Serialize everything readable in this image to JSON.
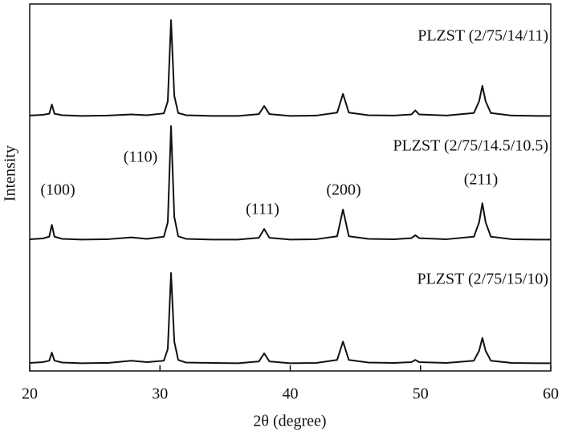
{
  "chart_data": {
    "type": "line",
    "x_label": "2θ (degree)",
    "y_label": "Intensity",
    "x": [
      20,
      21,
      21.5,
      21.7,
      21.9,
      22.5,
      24,
      26,
      27.8,
      29,
      30.3,
      30.6,
      30.85,
      31.1,
      31.4,
      32,
      34,
      36,
      37.6,
      38.0,
      38.4,
      40,
      42,
      43.6,
      44.05,
      44.5,
      46,
      48,
      49.3,
      49.6,
      49.9,
      52,
      54.1,
      54.5,
      54.75,
      55.0,
      55.4,
      57,
      59,
      60
    ],
    "series": [
      {
        "name": "PLZST (2/75/14/11)",
        "color": "#111111",
        "values": [
          69.6,
          69.8,
          70.1,
          72.6,
          70.1,
          69.7,
          69.5,
          69.6,
          69.9,
          69.7,
          70.2,
          73.5,
          95.6,
          75.0,
          70.3,
          69.7,
          69.5,
          69.5,
          70.0,
          72.2,
          70.0,
          69.5,
          69.6,
          70.4,
          75.5,
          70.4,
          69.7,
          69.6,
          69.9,
          71.0,
          69.9,
          69.6,
          70.3,
          73.5,
          77.7,
          73.5,
          70.3,
          69.6,
          69.5,
          69.5
        ]
      },
      {
        "name": "PLZST (2/75/14.5/10.5)",
        "color": "#111111",
        "values": [
          35.9,
          36.1,
          36.6,
          39.8,
          36.6,
          36.0,
          35.8,
          35.9,
          36.4,
          36.0,
          36.6,
          40.5,
          66.7,
          42.0,
          36.7,
          36.0,
          35.8,
          35.8,
          36.3,
          38.7,
          36.3,
          35.8,
          35.9,
          36.7,
          44.0,
          36.7,
          36.0,
          35.9,
          36.2,
          37.0,
          36.2,
          35.9,
          36.6,
          40.5,
          45.7,
          40.5,
          36.6,
          35.9,
          35.8,
          35.8
        ]
      },
      {
        "name": "PLZST (2/75/15/10)",
        "color": "#111111",
        "values": [
          2.2,
          2.4,
          2.8,
          5.0,
          2.8,
          2.3,
          2.1,
          2.2,
          2.8,
          2.4,
          2.8,
          6.0,
          26.7,
          8.0,
          3.0,
          2.3,
          2.2,
          2.1,
          2.6,
          4.8,
          2.6,
          2.1,
          2.2,
          3.0,
          8.0,
          3.0,
          2.3,
          2.2,
          2.4,
          3.0,
          2.4,
          2.2,
          2.8,
          5.5,
          9.0,
          5.5,
          2.8,
          2.2,
          2.1,
          2.1
        ]
      }
    ],
    "annotations": [
      "(100)",
      "(110)",
      "(111)",
      "(200)",
      "(211)"
    ],
    "xlim": [
      20,
      60
    ],
    "xticks": [
      20,
      30,
      40,
      50,
      60
    ],
    "ylim": [
      0,
      100
    ]
  }
}
